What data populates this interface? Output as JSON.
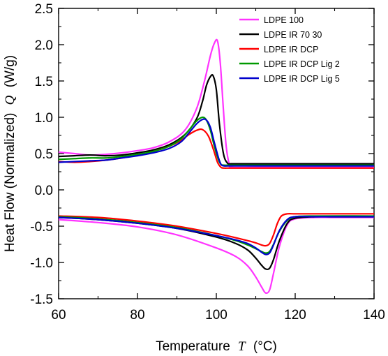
{
  "chart_data": {
    "type": "line",
    "xlabel": {
      "text": "Temperature",
      "var": "T",
      "unit": "(°C)"
    },
    "ylabel": {
      "text": "Heat Flow (Normalized)",
      "var": "Q",
      "unit": "(W/g)"
    },
    "xlim": [
      60,
      140
    ],
    "ylim": [
      -1.5,
      2.5
    ],
    "x_ticks": [
      "60",
      "80",
      "100",
      "120",
      "140"
    ],
    "y_ticks": [
      "-1.5",
      "-1.0",
      "-0.5",
      "0.0",
      "0.5",
      "1.0",
      "1.5",
      "2.0",
      "2.5"
    ],
    "grid": false,
    "legend_position": "top-right",
    "series": [
      {
        "name": "LDPE 100",
        "color": "#ff33ff",
        "x": [
          60,
          64,
          68,
          72,
          76,
          80,
          84,
          88,
          92,
          95,
          97,
          98.5,
          99.5,
          100.3,
          101,
          101.8,
          102.5,
          103.3,
          104,
          110,
          120,
          130,
          140
        ],
        "y": [
          0.52,
          0.5,
          0.48,
          0.49,
          0.51,
          0.54,
          0.58,
          0.66,
          0.82,
          1.12,
          1.5,
          1.85,
          2.02,
          2.05,
          1.75,
          1.1,
          0.6,
          0.35,
          0.31,
          0.31,
          0.31,
          0.31,
          0.31
        ],
        "cooling": {
          "x": [
            60,
            70,
            80,
            90,
            100,
            105,
            108,
            110,
            111.5,
            112.5,
            113.5,
            114.5,
            116,
            118,
            120,
            125,
            130,
            140
          ],
          "y": [
            -0.41,
            -0.45,
            -0.51,
            -0.62,
            -0.8,
            -0.92,
            -1.05,
            -1.2,
            -1.34,
            -1.42,
            -1.38,
            -1.15,
            -0.78,
            -0.48,
            -0.4,
            -0.38,
            -0.38,
            -0.38
          ]
        }
      },
      {
        "name": "LDPE IR 70 30",
        "color": "#000000",
        "x": [
          60,
          64,
          68,
          72,
          76,
          80,
          84,
          88,
          92,
          95,
          96.5,
          97.5,
          98.5,
          99.2,
          100,
          100.8,
          101.8,
          102.8,
          104,
          110,
          120,
          130,
          140
        ],
        "y": [
          0.46,
          0.47,
          0.48,
          0.47,
          0.48,
          0.51,
          0.55,
          0.62,
          0.76,
          0.98,
          1.22,
          1.44,
          1.56,
          1.57,
          1.38,
          0.9,
          0.5,
          0.37,
          0.36,
          0.36,
          0.36,
          0.36,
          0.36
        ],
        "cooling": {
          "x": [
            60,
            70,
            80,
            90,
            100,
            105,
            108,
            110,
            111.5,
            112.5,
            113.5,
            114.5,
            116,
            118,
            120,
            125,
            130,
            140
          ],
          "y": [
            -0.38,
            -0.41,
            -0.46,
            -0.53,
            -0.65,
            -0.74,
            -0.83,
            -0.94,
            -1.04,
            -1.09,
            -1.08,
            -0.96,
            -0.7,
            -0.46,
            -0.39,
            -0.37,
            -0.37,
            -0.37
          ]
        }
      },
      {
        "name": "LDPE IR DCP",
        "color": "#ff0000",
        "x": [
          60,
          64,
          68,
          72,
          76,
          80,
          84,
          88,
          91,
          93,
          95,
          96.5,
          98,
          99.3,
          100.3,
          101.2,
          102,
          103,
          104,
          110,
          120,
          130,
          140
        ],
        "y": [
          0.39,
          0.38,
          0.39,
          0.41,
          0.44,
          0.48,
          0.53,
          0.6,
          0.68,
          0.76,
          0.82,
          0.83,
          0.74,
          0.55,
          0.38,
          0.31,
          0.3,
          0.3,
          0.3,
          0.3,
          0.3,
          0.3,
          0.3
        ],
        "cooling": {
          "x": [
            60,
            70,
            80,
            90,
            100,
            105,
            108,
            110,
            111.5,
            112.5,
            113.5,
            114.5,
            115.5,
            116.5,
            118,
            120,
            125,
            140
          ],
          "y": [
            -0.36,
            -0.38,
            -0.43,
            -0.5,
            -0.6,
            -0.66,
            -0.7,
            -0.73,
            -0.76,
            -0.77,
            -0.74,
            -0.62,
            -0.46,
            -0.36,
            -0.33,
            -0.33,
            -0.33,
            -0.33
          ]
        }
      },
      {
        "name": "LDPE IR DCP Lig 2",
        "color": "#009900",
        "x": [
          60,
          64,
          68,
          72,
          76,
          80,
          84,
          88,
          91,
          93,
          95,
          96.5,
          97.5,
          98.5,
          99.5,
          100.5,
          101.2,
          102,
          103,
          110,
          120,
          130,
          140
        ],
        "y": [
          0.42,
          0.43,
          0.44,
          0.44,
          0.46,
          0.49,
          0.53,
          0.6,
          0.7,
          0.82,
          0.95,
          1.0,
          0.96,
          0.82,
          0.6,
          0.42,
          0.35,
          0.34,
          0.34,
          0.34,
          0.34,
          0.34,
          0.34
        ],
        "cooling": {
          "x": [
            60,
            70,
            80,
            90,
            100,
            105,
            108,
            110,
            111.5,
            112.5,
            113.5,
            114.5,
            116,
            118,
            120,
            125,
            140
          ],
          "y": [
            -0.37,
            -0.4,
            -0.45,
            -0.52,
            -0.63,
            -0.7,
            -0.76,
            -0.81,
            -0.85,
            -0.87,
            -0.85,
            -0.75,
            -0.57,
            -0.42,
            -0.37,
            -0.36,
            -0.36
          ]
        }
      },
      {
        "name": "LDPE IR DCP Lig 5",
        "color": "#0000cc",
        "x": [
          60,
          64,
          68,
          72,
          76,
          80,
          84,
          88,
          91,
          93,
          95,
          96.5,
          97.5,
          98.5,
          99.5,
          100.5,
          101.2,
          102,
          103,
          110,
          120,
          130,
          140
        ],
        "y": [
          0.38,
          0.39,
          0.4,
          0.41,
          0.44,
          0.47,
          0.51,
          0.57,
          0.66,
          0.78,
          0.91,
          0.97,
          0.96,
          0.86,
          0.65,
          0.45,
          0.35,
          0.33,
          0.33,
          0.33,
          0.33,
          0.33,
          0.33
        ],
        "cooling": {
          "x": [
            60,
            70,
            80,
            90,
            100,
            105,
            108,
            110,
            111.5,
            112.5,
            113.5,
            114.5,
            116,
            118,
            120,
            125,
            140
          ],
          "y": [
            -0.38,
            -0.41,
            -0.46,
            -0.53,
            -0.63,
            -0.69,
            -0.74,
            -0.8,
            -0.86,
            -0.89,
            -0.87,
            -0.76,
            -0.56,
            -0.41,
            -0.37,
            -0.37,
            -0.37
          ]
        }
      }
    ]
  }
}
